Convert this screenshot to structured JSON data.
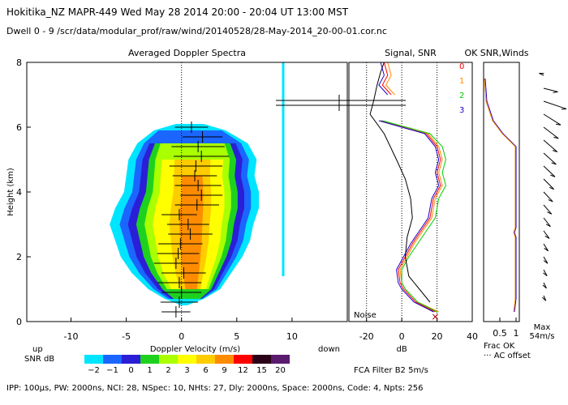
{
  "header": {
    "line1": "Hokitika_NZ   MAPR-449   Wed May 28 2014 20:00 - 20:04 UT 13:00 MST",
    "line2": "Dwell   0 - 9   /scr/data/modular_prof/raw/wind/20140528/28-May-2014_20-00-01.cor.nc"
  },
  "footer": "IPP: 100µs,   PW: 2000ns,   NCI:  28,   NSpec: 10,  NHts: 27,   Dly: 2000ns,   Space: 2000ns,   Code: 4,   Npts: 256",
  "colorbar": {
    "left_word": "up",
    "right_word": "down",
    "label": "SNR dB",
    "ticks": [
      "−2",
      "−1",
      "0",
      "1",
      "2",
      "3",
      "6",
      "9",
      "12",
      "15",
      "20"
    ],
    "colors": [
      "#00e5ff",
      "#1a66ff",
      "#2a1fd6",
      "#1fd11f",
      "#aaff00",
      "#ffff00",
      "#ffcc00",
      "#ff8c00",
      "#ff0000",
      "#2b0019",
      "#5a1a6e"
    ]
  },
  "chart_data": [
    {
      "type": "heatmap",
      "title": "Averaged Doppler Spectra",
      "xlabel": "Doppler Velocity (m/s)",
      "ylabel": "Height (km)",
      "xlim": [
        -14,
        15
      ],
      "ylim": [
        0,
        8
      ],
      "xticks": [
        "-10",
        "-5",
        "0",
        "5",
        "10"
      ],
      "yticks": [
        "0",
        "2",
        "4",
        "6",
        "8"
      ],
      "shape": [
        {
          "h": 0.5,
          "l": 0,
          "r": 0.5
        },
        {
          "h": 0.7,
          "l": -1.5,
          "r": 2.0
        },
        {
          "h": 1.0,
          "l": -3.0,
          "r": 3.5
        },
        {
          "h": 1.5,
          "l": -4.5,
          "r": 4.5
        },
        {
          "h": 2.0,
          "l": -5.5,
          "r": 5.5
        },
        {
          "h": 2.5,
          "l": -6.0,
          "r": 6.2
        },
        {
          "h": 3.0,
          "l": -6.5,
          "r": 6.5
        },
        {
          "h": 3.5,
          "l": -6.0,
          "r": 7.0
        },
        {
          "h": 4.0,
          "l": -5.2,
          "r": 7.0
        },
        {
          "h": 4.5,
          "l": -5.0,
          "r": 6.6
        },
        {
          "h": 5.0,
          "l": -4.8,
          "r": 6.8
        },
        {
          "h": 5.5,
          "l": -4.0,
          "r": 6.0
        },
        {
          "h": 5.9,
          "l": -2.5,
          "r": 4.0
        },
        {
          "h": 6.1,
          "l": -0.5,
          "r": 2.0
        }
      ],
      "moments": [
        {
          "h": 0.3,
          "v": -0.5,
          "w": 1.3
        },
        {
          "h": 0.6,
          "v": -0.2,
          "w": 1.7
        },
        {
          "h": 0.9,
          "v": 0.0,
          "w": 1.8
        },
        {
          "h": 1.2,
          "v": -0.2,
          "w": 2.0
        },
        {
          "h": 1.5,
          "v": 0.2,
          "w": 2.0
        },
        {
          "h": 1.8,
          "v": -0.5,
          "w": 2.0
        },
        {
          "h": 2.1,
          "v": -0.3,
          "w": 1.9
        },
        {
          "h": 2.4,
          "v": -0.1,
          "w": 2.0
        },
        {
          "h": 2.7,
          "v": 0.8,
          "w": 2.0
        },
        {
          "h": 3.0,
          "v": 0.6,
          "w": 1.9
        },
        {
          "h": 3.3,
          "v": -0.2,
          "w": 1.6
        },
        {
          "h": 3.6,
          "v": 1.4,
          "w": 2.0
        },
        {
          "h": 3.9,
          "v": 1.8,
          "w": 1.9
        },
        {
          "h": 4.2,
          "v": 1.5,
          "w": 2.1
        },
        {
          "h": 4.5,
          "v": 1.2,
          "w": 2.0
        },
        {
          "h": 4.8,
          "v": 1.3,
          "w": 2.4
        },
        {
          "h": 5.1,
          "v": 1.8,
          "w": 2.5
        },
        {
          "h": 5.4,
          "v": 1.5,
          "w": 2.4
        },
        {
          "h": 5.7,
          "v": 1.9,
          "w": 1.8
        },
        {
          "h": 6.0,
          "v": 0.9,
          "w": 1.5
        }
      ],
      "noise_line": {
        "v": 9.2,
        "h_from": 1.4,
        "h_to": 8.0
      }
    },
    {
      "type": "line",
      "title": "Signal, SNR",
      "xlabel": "dB",
      "xlim": [
        -30,
        40
      ],
      "ylim": [
        0,
        8
      ],
      "xticks": [
        "-20",
        "0",
        "20",
        "40"
      ],
      "noise_label": "Noise",
      "series": [
        {
          "name": "0",
          "color": "#ff0000",
          "points": [
            [
              19,
              0.3
            ],
            [
              8,
              0.6
            ],
            [
              1,
              1.0
            ],
            [
              -1,
              1.2
            ],
            [
              -2,
              1.6
            ],
            [
              2,
              2.0
            ],
            [
              6,
              2.4
            ],
            [
              11,
              2.8
            ],
            [
              16,
              3.2
            ],
            [
              18,
              3.8
            ],
            [
              22,
              4.2
            ],
            [
              20,
              4.6
            ],
            [
              22,
              5.0
            ],
            [
              20,
              5.4
            ],
            [
              14,
              5.8
            ],
            [
              -12,
              6.2
            ]
          ]
        },
        {
          "name": "1",
          "color": "#ff8c00",
          "points": [
            [
              21,
              0.3
            ],
            [
              9,
              0.6
            ],
            [
              2,
              1.0
            ],
            [
              0,
              1.2
            ],
            [
              -1,
              1.6
            ],
            [
              3,
              2.0
            ],
            [
              7,
              2.4
            ],
            [
              12,
              2.8
            ],
            [
              17,
              3.2
            ],
            [
              19,
              3.8
            ],
            [
              23,
              4.2
            ],
            [
              21,
              4.6
            ],
            [
              23,
              5.0
            ],
            [
              21,
              5.4
            ],
            [
              15,
              5.8
            ],
            [
              -11,
              6.2
            ]
          ]
        },
        {
          "name": "2",
          "color": "#00cc00",
          "points": [
            [
              20,
              0.3
            ],
            [
              9,
              0.6
            ],
            [
              2,
              1.0
            ],
            [
              0,
              1.2
            ],
            [
              0,
              1.6
            ],
            [
              4,
              2.0
            ],
            [
              9,
              2.4
            ],
            [
              14,
              2.8
            ],
            [
              19,
              3.2
            ],
            [
              21,
              3.8
            ],
            [
              25,
              4.2
            ],
            [
              23,
              4.6
            ],
            [
              25,
              5.0
            ],
            [
              23,
              5.4
            ],
            [
              16,
              5.8
            ],
            [
              -11,
              6.2
            ]
          ]
        },
        {
          "name": "3",
          "color": "#2200cc",
          "points": [
            [
              18,
              0.3
            ],
            [
              7,
              0.6
            ],
            [
              0,
              1.0
            ],
            [
              -2,
              1.2
            ],
            [
              -3,
              1.6
            ],
            [
              1,
              2.0
            ],
            [
              5,
              2.4
            ],
            [
              10,
              2.8
            ],
            [
              15,
              3.2
            ],
            [
              17,
              3.8
            ],
            [
              21,
              4.2
            ],
            [
              19,
              4.6
            ],
            [
              21,
              5.0
            ],
            [
              19,
              5.4
            ],
            [
              13,
              5.8
            ],
            [
              -13,
              6.2
            ]
          ]
        },
        {
          "name": "signal",
          "color": "#000000",
          "points": [
            [
              16,
              0.6
            ],
            [
              10,
              1.0
            ],
            [
              4,
              1.4
            ],
            [
              2,
              2.0
            ],
            [
              3,
              2.6
            ],
            [
              6,
              3.2
            ],
            [
              5,
              3.8
            ],
            [
              2,
              4.4
            ],
            [
              -3,
              5.0
            ],
            [
              -10,
              5.8
            ],
            [
              -18,
              6.4
            ],
            [
              -16,
              6.8
            ],
            [
              -14,
              7.3
            ],
            [
              -12,
              7.7
            ],
            [
              -10,
              8.0
            ]
          ]
        }
      ]
    },
    {
      "type": "line",
      "title": "OK SNR,Winds",
      "xlabel": "Frac OK",
      "xlim": [
        0,
        1.1
      ],
      "ylim": [
        0,
        8
      ],
      "xticks": [
        "0.5",
        "1"
      ],
      "legend_extra": "··· AC offset",
      "max_label": "Max",
      "max_value": "54m/s",
      "fracok": [
        [
          0.95,
          0.3
        ],
        [
          1.0,
          0.7
        ],
        [
          1.0,
          2.6
        ],
        [
          0.95,
          2.75
        ],
        [
          1.0,
          2.9
        ],
        [
          1.0,
          5.4
        ],
        [
          0.6,
          5.8
        ],
        [
          0.3,
          6.2
        ],
        [
          0.1,
          6.8
        ],
        [
          0.05,
          7.5
        ]
      ],
      "winds": [
        {
          "h": 7.6,
          "u": -8,
          "v": 8
        },
        {
          "h": 7.2,
          "u": 25,
          "v": -14
        },
        {
          "h": 6.8,
          "u": 40,
          "v": -30
        },
        {
          "h": 6.4,
          "u": 30,
          "v": -42
        },
        {
          "h": 6.0,
          "u": 26,
          "v": -44
        },
        {
          "h": 5.6,
          "u": 24,
          "v": -46
        },
        {
          "h": 5.2,
          "u": 22,
          "v": -44
        },
        {
          "h": 4.8,
          "u": 20,
          "v": -42
        },
        {
          "h": 4.4,
          "u": 18,
          "v": -40
        },
        {
          "h": 4.0,
          "u": 16,
          "v": -38
        },
        {
          "h": 3.6,
          "u": 14,
          "v": -36
        },
        {
          "h": 3.2,
          "u": 12,
          "v": -34
        },
        {
          "h": 2.8,
          "u": 10,
          "v": -30
        },
        {
          "h": 2.4,
          "u": 8,
          "v": -28
        },
        {
          "h": 2.0,
          "u": 7,
          "v": -26
        },
        {
          "h": 1.6,
          "u": 6,
          "v": -24
        },
        {
          "h": 1.2,
          "u": 5,
          "v": -22
        },
        {
          "h": 0.8,
          "u": 4,
          "v": -20
        }
      ]
    }
  ],
  "spectra_panel": {
    "filter_label": "FCA Filter B2   5m/s"
  }
}
